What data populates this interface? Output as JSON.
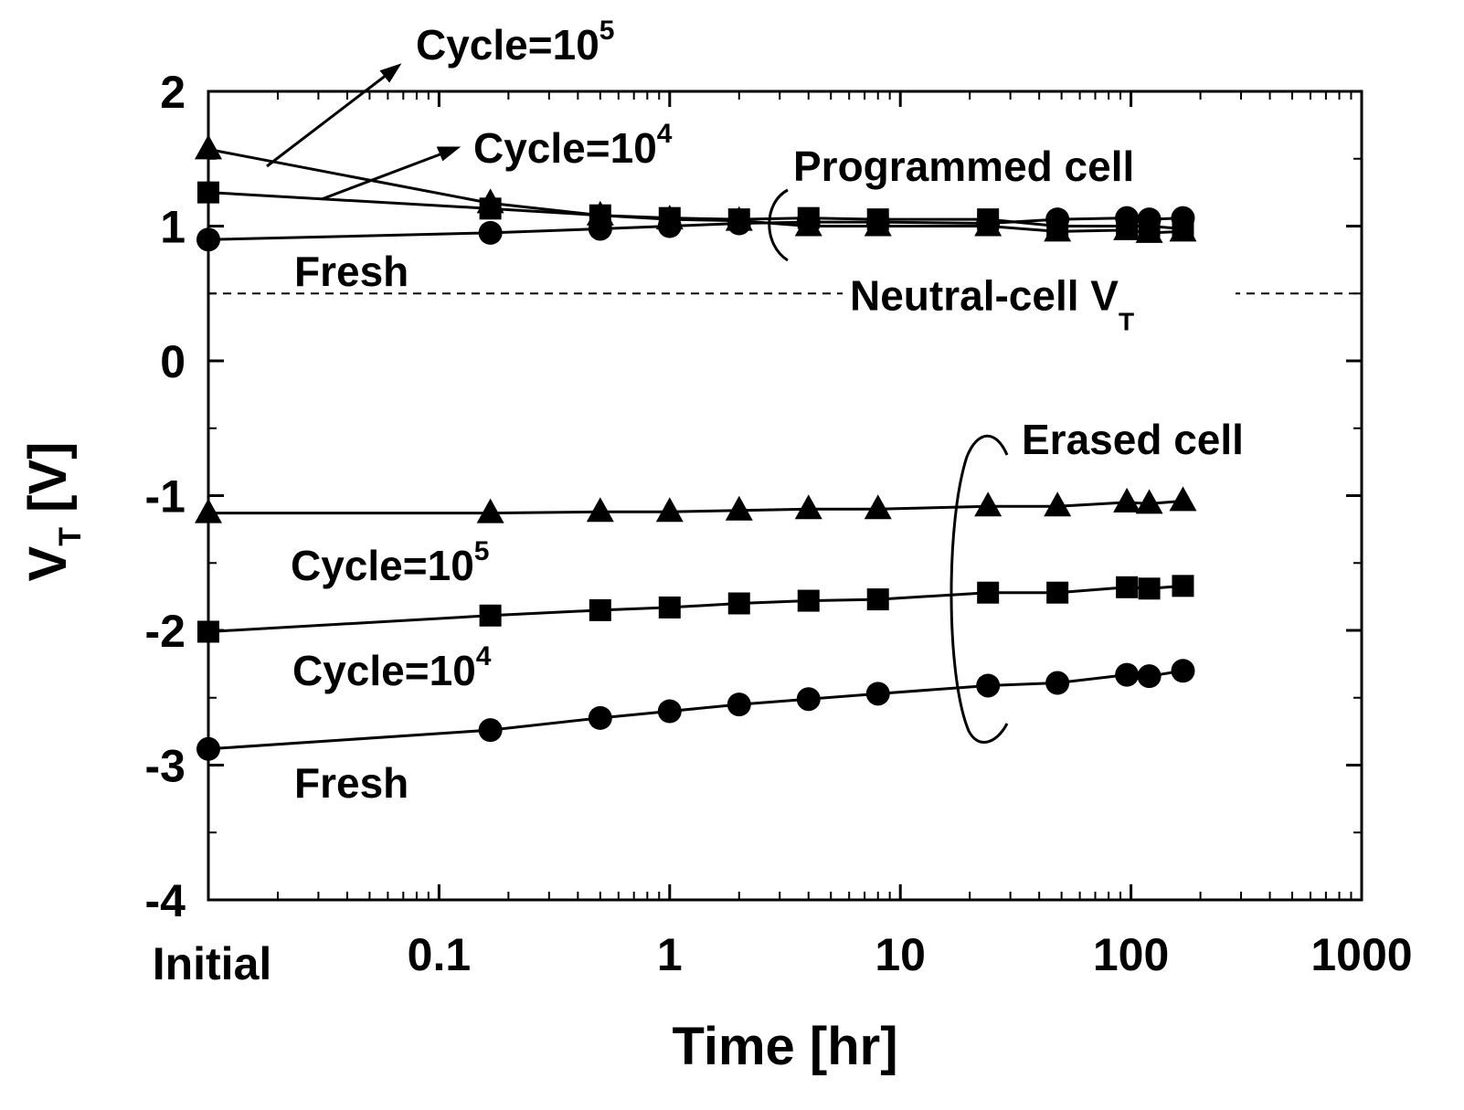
{
  "chart_data": {
    "type": "line",
    "x_label": "Time [hr]",
    "y_label": {
      "text": "V",
      "sub": "T",
      "suffix": " [V]"
    },
    "xscale": "log",
    "xlim": [
      0.01,
      1000
    ],
    "ylim": [
      -4,
      2
    ],
    "xticks": [
      {
        "value": 0.01,
        "label": "Initial"
      },
      0.1,
      1,
      10,
      100,
      1000
    ],
    "yticks": [
      -4,
      -3,
      -2,
      -1,
      0,
      1,
      2
    ],
    "x": [
      0.01,
      0.167,
      0.5,
      1,
      2,
      4,
      8,
      24,
      48,
      96,
      120,
      168
    ],
    "series": [
      {
        "marker": "triangle",
        "color": "#000000",
        "values": [
          1.57,
          1.17,
          1.08,
          1.05,
          1.04,
          1.0,
          1.0,
          1.0,
          0.96,
          0.97,
          0.95,
          0.96
        ]
      },
      {
        "marker": "square",
        "color": "#000000",
        "values": [
          1.25,
          1.13,
          1.08,
          1.06,
          1.05,
          1.06,
          1.05,
          1.05,
          1.0,
          1.0,
          1.0,
          0.98
        ]
      },
      {
        "marker": "circle",
        "color": "#000000",
        "values": [
          0.9,
          0.95,
          0.98,
          1.0,
          1.02,
          1.03,
          1.03,
          1.02,
          1.05,
          1.06,
          1.05,
          1.06
        ]
      },
      {
        "marker": "triangle",
        "color": "#000000",
        "values": [
          -1.13,
          -1.13,
          -1.12,
          -1.12,
          -1.11,
          -1.1,
          -1.1,
          -1.08,
          -1.08,
          -1.05,
          -1.06,
          -1.04
        ]
      },
      {
        "marker": "square",
        "color": "#000000",
        "values": [
          -2.01,
          -1.89,
          -1.85,
          -1.83,
          -1.8,
          -1.78,
          -1.77,
          -1.72,
          -1.72,
          -1.68,
          -1.69,
          -1.67
        ]
      },
      {
        "marker": "circle",
        "color": "#000000",
        "values": [
          -2.88,
          -2.74,
          -2.65,
          -2.6,
          -2.55,
          -2.51,
          -2.47,
          -2.41,
          -2.39,
          -2.33,
          -2.34,
          -2.3
        ]
      }
    ],
    "reference_line": {
      "value": 0.5,
      "text": "Neutral-cell V",
      "sub": "T"
    },
    "annotations": [
      {
        "text": "Cycle=10",
        "sup": "5"
      },
      {
        "text": "Cycle=10",
        "sup": "4"
      },
      {
        "text": "Programmed cell"
      },
      {
        "text": "Fresh"
      },
      {
        "text": "Erased cell"
      },
      {
        "text": "Cycle=10",
        "sup": "5"
      },
      {
        "text": "Cycle=10",
        "sup": "4"
      },
      {
        "text": "Fresh"
      }
    ]
  }
}
